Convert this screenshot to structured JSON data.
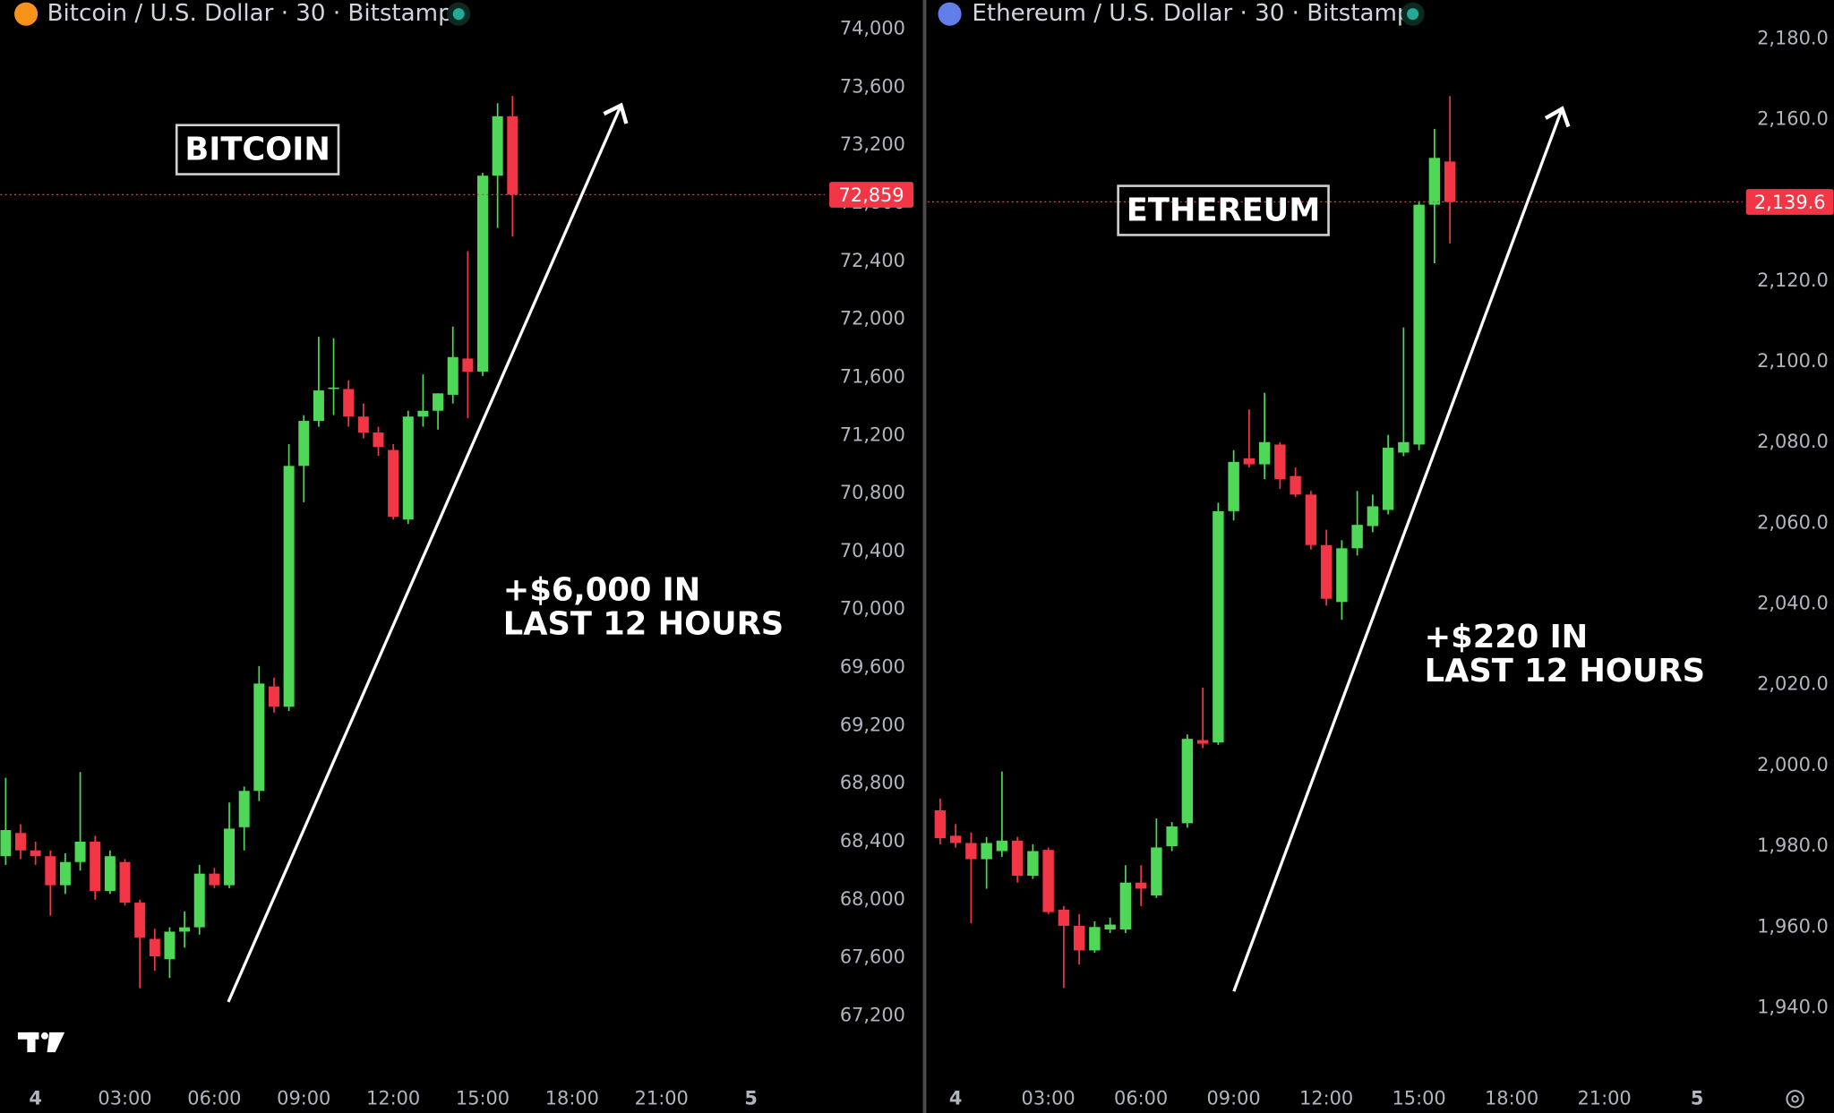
{
  "chart_data": [
    {
      "type": "candlestick",
      "title": "Bitcoin / U.S. Dollar · 30 · Bitstamp",
      "label": "BITCOIN",
      "annotation": [
        "+$6,000 IN",
        "LAST 12 HOURS"
      ],
      "up_color": "#4fd858",
      "down_color": "#f23645",
      "x": [
        -1,
        -0.5,
        0,
        0.5,
        1,
        1.5,
        2,
        2.5,
        3,
        3.5,
        4,
        4.5,
        5,
        5.5,
        6,
        6.5,
        7,
        7.5,
        8,
        8.5,
        9,
        9.5,
        10,
        10.5,
        11,
        11.5,
        12,
        12.5,
        13,
        13.5,
        14,
        14.5,
        15,
        15.5,
        16
      ],
      "open": [
        68300,
        68460,
        68340,
        68300,
        68100,
        68260,
        68400,
        68060,
        68260,
        67980,
        67730,
        67590,
        67780,
        67810,
        68180,
        68100,
        68500,
        68750,
        69470,
        69330,
        70990,
        71300,
        71520,
        71520,
        71330,
        71220,
        71100,
        70620,
        71330,
        71370,
        71480,
        71730,
        71640,
        72990,
        73400
      ],
      "high": [
        68840,
        68520,
        68400,
        68340,
        68320,
        68880,
        68440,
        68340,
        68280,
        68000,
        67800,
        67810,
        67920,
        68240,
        68220,
        68670,
        68780,
        69610,
        69530,
        71140,
        71340,
        71880,
        71870,
        71580,
        71420,
        71260,
        71140,
        71370,
        71620,
        71490,
        71950,
        72470,
        73010,
        73490,
        73540
      ],
      "low": [
        68240,
        68280,
        68240,
        67890,
        68040,
        68200,
        68000,
        68040,
        67960,
        67390,
        67510,
        67460,
        67670,
        67760,
        68080,
        68080,
        68340,
        68680,
        69290,
        69300,
        70740,
        71260,
        71340,
        71260,
        71180,
        71060,
        70620,
        70590,
        71260,
        71240,
        71420,
        71320,
        71610,
        72630,
        72570
      ],
      "close": [
        68480,
        68340,
        68300,
        68100,
        68260,
        68400,
        68060,
        68300,
        67980,
        67740,
        67610,
        67780,
        67810,
        68180,
        68100,
        68490,
        68750,
        69490,
        69330,
        70990,
        71300,
        71510,
        71530,
        71330,
        71220,
        71120,
        70640,
        71330,
        71370,
        71490,
        71740,
        71640,
        72990,
        73400,
        72859
      ],
      "last_price": {
        "value": 72859,
        "label": "72,859"
      },
      "xlim": [
        -1.18,
        26.47
      ],
      "ylim": [
        66788,
        74201
      ],
      "xticks": [
        {
          "value": 0,
          "label": "4"
        },
        {
          "value": 3,
          "label": "03:00"
        },
        {
          "value": 6,
          "label": "06:00"
        },
        {
          "value": 9,
          "label": "09:00"
        },
        {
          "value": 12,
          "label": "12:00"
        },
        {
          "value": 15,
          "label": "15:00"
        },
        {
          "value": 18,
          "label": "18:00"
        },
        {
          "value": 21,
          "label": "21:00"
        },
        {
          "value": 24,
          "label": "5"
        }
      ],
      "yticks": [
        {
          "value": 67200,
          "label": "67,200"
        },
        {
          "value": 67600,
          "label": "67,600"
        },
        {
          "value": 68000,
          "label": "68,000"
        },
        {
          "value": 68400,
          "label": "68,400"
        },
        {
          "value": 68800,
          "label": "68,800"
        },
        {
          "value": 69200,
          "label": "69,200"
        },
        {
          "value": 69600,
          "label": "69,600"
        },
        {
          "value": 70000,
          "label": "70,000"
        },
        {
          "value": 70400,
          "label": "70,400"
        },
        {
          "value": 70800,
          "label": "70,800"
        },
        {
          "value": 71200,
          "label": "71,200"
        },
        {
          "value": 71600,
          "label": "71,600"
        },
        {
          "value": 72000,
          "label": "72,000"
        },
        {
          "value": 72400,
          "label": "72,400"
        },
        {
          "value": 72800,
          "label": "72,800"
        },
        {
          "value": 73200,
          "label": "73,200"
        },
        {
          "value": 73600,
          "label": "73,600"
        },
        {
          "value": 74000,
          "label": "74,000"
        }
      ]
    },
    {
      "type": "candlestick",
      "title": "Ethereum / U.S. Dollar · 30 · Bitstamp",
      "label": "ETHEREUM",
      "annotation": [
        "+$220 IN",
        "LAST 12 HOURS"
      ],
      "up_color": "#4fd858",
      "down_color": "#f23645",
      "x": [
        -0.5,
        0,
        0.5,
        1,
        1.5,
        2,
        2.5,
        3,
        3.5,
        4,
        4.5,
        5,
        5.5,
        6,
        6.5,
        7,
        7.5,
        8,
        8.5,
        9,
        9.5,
        10,
        10.5,
        11,
        11.5,
        12,
        12.5,
        13,
        13.5,
        14,
        14.5,
        15,
        15.5,
        16
      ],
      "open": [
        1988.9,
        1982.6,
        1980.8,
        1976.8,
        1978.8,
        1981.4,
        1972.7,
        1979.1,
        1964.3,
        1960.3,
        1954.2,
        1959.4,
        1959.4,
        1971.0,
        1967.8,
        1980.0,
        1985.7,
        2006.3,
        2005.7,
        2063.0,
        2076.1,
        2074.6,
        2079.5,
        2071.7,
        2067.1,
        2054.6,
        2040.5,
        2053.8,
        2059.3,
        2063.3,
        2077.5,
        2079.5,
        2138.9,
        2149.6
      ],
      "high": [
        1991.8,
        1985.5,
        1983.4,
        1982.3,
        1998.5,
        1982.3,
        1980.5,
        1979.7,
        1965.2,
        1963.2,
        1961.4,
        1962.3,
        1975.3,
        1975.3,
        1986.9,
        1986.0,
        2007.7,
        2019.3,
        2065.1,
        2078.1,
        2088.2,
        2092.3,
        2080.1,
        2073.8,
        2068.0,
        2058.4,
        2055.8,
        2068.0,
        2067.1,
        2081.9,
        2108.5,
        2139.8,
        2157.7,
        2165.8
      ],
      "low": [
        1980.5,
        1979.7,
        1960.9,
        1969.5,
        1977.4,
        1971.0,
        1971.9,
        1963.2,
        1944.9,
        1950.7,
        1953.6,
        1958.5,
        1958.5,
        1965.2,
        1967.2,
        1978.8,
        1984.6,
        2004.3,
        2005.1,
        2060.7,
        2073.8,
        2070.9,
        2068.5,
        2066.5,
        2053.5,
        2039.6,
        2036.1,
        2052.0,
        2057.8,
        2062.2,
        2076.6,
        2078.1,
        2124.4,
        2129.3
      ],
      "close": [
        1982.0,
        1980.8,
        1976.8,
        1980.8,
        1981.4,
        1972.7,
        1978.8,
        1963.7,
        1960.3,
        1954.2,
        1960.0,
        1960.6,
        1971.0,
        1969.5,
        1979.7,
        1984.9,
        2006.6,
        2005.4,
        2063.0,
        2075.2,
        2074.6,
        2080.1,
        2070.9,
        2067.1,
        2054.6,
        2041.3,
        2053.8,
        2059.6,
        2064.2,
        2078.7,
        2080.1,
        2138.9,
        2150.5,
        2139.6
      ],
      "last_price": {
        "value": 2139.6,
        "label": "2,139.6"
      },
      "xlim": [
        -0.91,
        25.47
      ],
      "ylim": [
        1923.2,
        2189.6
      ],
      "xticks": [
        {
          "value": 0,
          "label": "4"
        },
        {
          "value": 3,
          "label": "03:00"
        },
        {
          "value": 6,
          "label": "06:00"
        },
        {
          "value": 9,
          "label": "09:00"
        },
        {
          "value": 12,
          "label": "12:00"
        },
        {
          "value": 15,
          "label": "15:00"
        },
        {
          "value": 18,
          "label": "18:00"
        },
        {
          "value": 21,
          "label": "21:00"
        },
        {
          "value": 24,
          "label": "5"
        }
      ],
      "yticks": [
        {
          "value": 1940,
          "label": "1,940.0"
        },
        {
          "value": 1960,
          "label": "1,960.0"
        },
        {
          "value": 1980,
          "label": "1,980.0"
        },
        {
          "value": 2000,
          "label": "2,000.0"
        },
        {
          "value": 2020,
          "label": "2,020.0"
        },
        {
          "value": 2040,
          "label": "2,040.0"
        },
        {
          "value": 2060,
          "label": "2,060.0"
        },
        {
          "value": 2080,
          "label": "2,080.0"
        },
        {
          "value": 2100,
          "label": "2,100.0"
        },
        {
          "value": 2120,
          "label": "2,120.0"
        },
        {
          "value": 2140,
          "label": "2,140.0"
        },
        {
          "value": 2160,
          "label": "2,160.0"
        },
        {
          "value": 2180,
          "label": "2,180.0"
        }
      ]
    }
  ]
}
